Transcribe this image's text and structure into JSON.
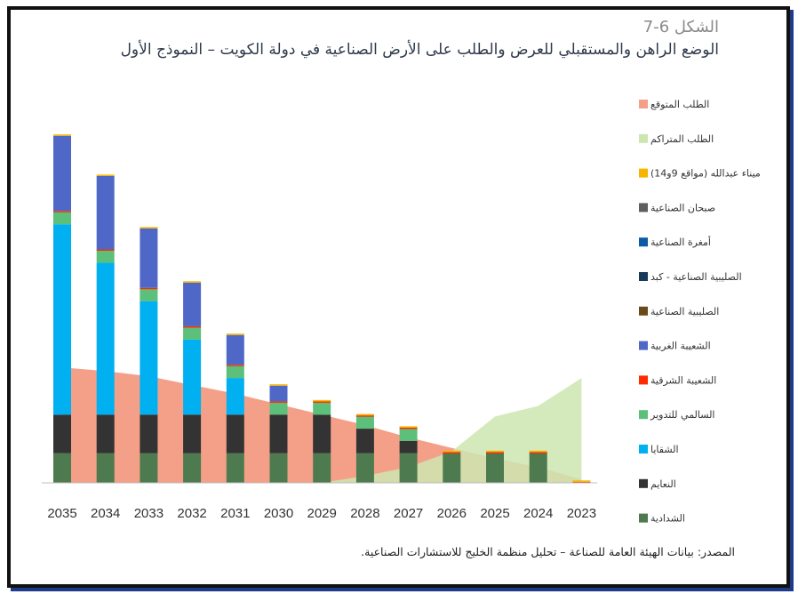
{
  "figure": {
    "number": "الشكل 6-7",
    "title": "الوضع الراهن والمستقبلي للعرض والطلب على الأرض الصناعية في دولة الكويت – النموذج الأول",
    "source": "المصدر:  بيانات الهيئة العامة للصناعة – تحليل منظمة الخليج للاستشارات الصناعية."
  },
  "chart_data": {
    "type": "bar",
    "stacked": true,
    "x_order": "descending-left-to-right",
    "categories": [
      "2035",
      "2034",
      "2033",
      "2032",
      "2031",
      "2030",
      "2029",
      "2028",
      "2027",
      "2026",
      "2025",
      "2024",
      "2023"
    ],
    "ylim": [
      0,
      1000
    ],
    "grid": false,
    "legend_position": "right",
    "areas": [
      {
        "name": "الطلب المتوقع",
        "color": "#f4a088",
        "values": [
          330,
          320,
          305,
          280,
          255,
          225,
          195,
          165,
          130,
          100,
          70,
          45,
          10
        ]
      },
      {
        "name": "الطلب المتراكم",
        "color": "#cde6b0",
        "values": [
          0,
          0,
          0,
          0,
          0,
          0,
          0,
          20,
          45,
          90,
          190,
          220,
          300
        ]
      }
    ],
    "series": [
      {
        "name": "الشدادية",
        "color": "#4d7a4f",
        "values": [
          85,
          85,
          85,
          85,
          85,
          85,
          85,
          85,
          85,
          85,
          85,
          85,
          0
        ]
      },
      {
        "name": "النعايم",
        "color": "#333333",
        "values": [
          110,
          110,
          110,
          110,
          110,
          110,
          110,
          70,
          35,
          0,
          0,
          0,
          0
        ]
      },
      {
        "name": "الشقايا",
        "color": "#00b0f0",
        "values": [
          545,
          435,
          325,
          215,
          105,
          0,
          0,
          0,
          0,
          0,
          0,
          0,
          0
        ]
      },
      {
        "name": "السالمي للتدوير",
        "color": "#5cbf7a",
        "values": [
          35,
          35,
          35,
          35,
          35,
          35,
          35,
          35,
          35,
          0,
          0,
          0,
          0
        ]
      },
      {
        "name": "الشعيبة الشرقية",
        "color": "#ff2a00",
        "values": [
          3,
          3,
          3,
          3,
          3,
          3,
          3,
          3,
          3,
          3,
          3,
          3,
          3
        ]
      },
      {
        "name": "الشعيبة الغربية",
        "color": "#4f68c8",
        "values": [
          215,
          210,
          170,
          125,
          85,
          45,
          0,
          0,
          0,
          0,
          0,
          0,
          0
        ]
      },
      {
        "name": "الصليبية الصناعية",
        "color": "#6b4a1a",
        "values": [
          0,
          0,
          0,
          0,
          0,
          0,
          0,
          0,
          0,
          0,
          0,
          0,
          0
        ]
      },
      {
        "name": "الصليبية الصناعية - كبد",
        "color": "#163a58",
        "values": [
          0,
          0,
          0,
          0,
          0,
          0,
          0,
          0,
          0,
          0,
          0,
          0,
          0
        ]
      },
      {
        "name": "أمغرة الصناعية",
        "color": "#0d5aa6",
        "values": [
          0,
          0,
          0,
          0,
          0,
          0,
          0,
          0,
          0,
          0,
          0,
          0,
          0
        ]
      },
      {
        "name": "صبحان الصناعية",
        "color": "#5f5f5f",
        "values": [
          0,
          0,
          0,
          0,
          0,
          0,
          0,
          0,
          0,
          0,
          0,
          0,
          0
        ]
      },
      {
        "name": "ميناء عبدالله (مواقع 9و14)",
        "color": "#f7b500",
        "values": [
          4,
          4,
          4,
          4,
          4,
          4,
          4,
          4,
          4,
          4,
          4,
          4,
          4
        ]
      }
    ],
    "legend_order": [
      "الطلب المتوقع",
      "الطلب المتراكم",
      "ميناء عبدالله (مواقع 9و14)",
      "صبحان الصناعية",
      "أمغرة الصناعية",
      "الصليبية الصناعية - كبد",
      "الصليبية الصناعية",
      "الشعيبة الغربية",
      "الشعيبة الشرقية",
      "السالمي للتدوير",
      "الشقايا",
      "النعايم",
      "الشدادية"
    ]
  }
}
